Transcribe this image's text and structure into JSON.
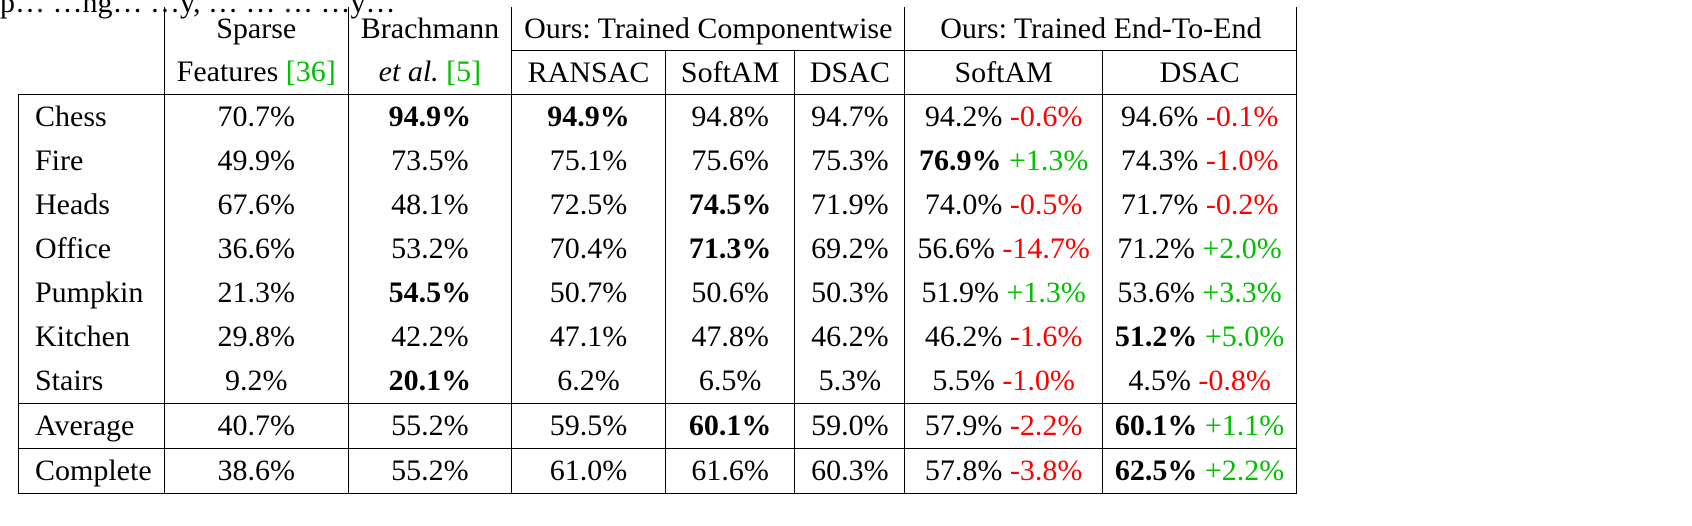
{
  "caption_fragment": "p… …ng… …y, … … … …y…",
  "header": {
    "row1": {
      "sparse": "Sparse",
      "brachmann": "Brachmann",
      "componentwise": "Ours: Trained Componentwise",
      "endtoend": "Ours: Trained End-To-End"
    },
    "row2": {
      "sparse_a": "Features ",
      "sparse_ref": "[36]",
      "brach_a": "et al.",
      "brach_ref": "[5]",
      "ransac": "RANSAC",
      "softam_c": "SoftAM",
      "dsac_c": "DSAC",
      "softam_e": "SoftAM",
      "dsac_e": "DSAC"
    }
  },
  "scenes": [
    {
      "name": "Chess",
      "sparse": "70.7%",
      "brach": "94.9%",
      "ransac": "94.9%",
      "softam": "94.8%",
      "dsac": "94.7%",
      "e2e_softam": "94.2%",
      "e2e_softam_d": "-0.6%",
      "e2e_dsac": "94.6%",
      "e2e_dsac_d": "-0.1%"
    },
    {
      "name": "Fire",
      "sparse": "49.9%",
      "brach": "73.5%",
      "ransac": "75.1%",
      "softam": "75.6%",
      "dsac": "75.3%",
      "e2e_softam": "76.9%",
      "e2e_softam_d": "+1.3%",
      "e2e_dsac": "74.3%",
      "e2e_dsac_d": "-1.0%"
    },
    {
      "name": "Heads",
      "sparse": "67.6%",
      "brach": "48.1%",
      "ransac": "72.5%",
      "softam": "74.5%",
      "dsac": "71.9%",
      "e2e_softam": "74.0%",
      "e2e_softam_d": "-0.5%",
      "e2e_dsac": "71.7%",
      "e2e_dsac_d": "-0.2%"
    },
    {
      "name": "Office",
      "sparse": "36.6%",
      "brach": "53.2%",
      "ransac": "70.4%",
      "softam": "71.3%",
      "dsac": "69.2%",
      "e2e_softam": "56.6%",
      "e2e_softam_d": "-14.7%",
      "e2e_dsac": "71.2%",
      "e2e_dsac_d": "+2.0%"
    },
    {
      "name": "Pumpkin",
      "sparse": "21.3%",
      "brach": "54.5%",
      "ransac": "50.7%",
      "softam": "50.6%",
      "dsac": "50.3%",
      "e2e_softam": "51.9%",
      "e2e_softam_d": "+1.3%",
      "e2e_dsac": "53.6%",
      "e2e_dsac_d": "+3.3%"
    },
    {
      "name": "Kitchen",
      "sparse": "29.8%",
      "brach": "42.2%",
      "ransac": "47.1%",
      "softam": "47.8%",
      "dsac": "46.2%",
      "e2e_softam": "46.2%",
      "e2e_softam_d": "-1.6%",
      "e2e_dsac": "51.2%",
      "e2e_dsac_d": "+5.0%"
    },
    {
      "name": "Stairs",
      "sparse": "9.2%",
      "brach": "20.1%",
      "ransac": "6.2%",
      "softam": "6.5%",
      "dsac": "5.3%",
      "e2e_softam": "5.5%",
      "e2e_softam_d": "-1.0%",
      "e2e_dsac": "4.5%",
      "e2e_dsac_d": "-0.8%"
    }
  ],
  "average": {
    "name": "Average",
    "sparse": "40.7%",
    "brach": "55.2%",
    "ransac": "59.5%",
    "softam": "60.1%",
    "dsac": "59.0%",
    "e2e_softam": "57.9%",
    "e2e_softam_d": "-2.2%",
    "e2e_dsac": "60.1%",
    "e2e_dsac_d": "+1.1%"
  },
  "complete": {
    "name": "Complete",
    "sparse": "38.6%",
    "brach": "55.2%",
    "ransac": "61.0%",
    "softam": "61.6%",
    "dsac": "60.3%",
    "e2e_softam": "57.8%",
    "e2e_softam_d": "-3.8%",
    "e2e_dsac": "62.5%",
    "e2e_dsac_d": "+2.2%"
  },
  "colors": {
    "negative": "#ff0000",
    "positive": "#00c000",
    "citation": "#00c000"
  }
}
